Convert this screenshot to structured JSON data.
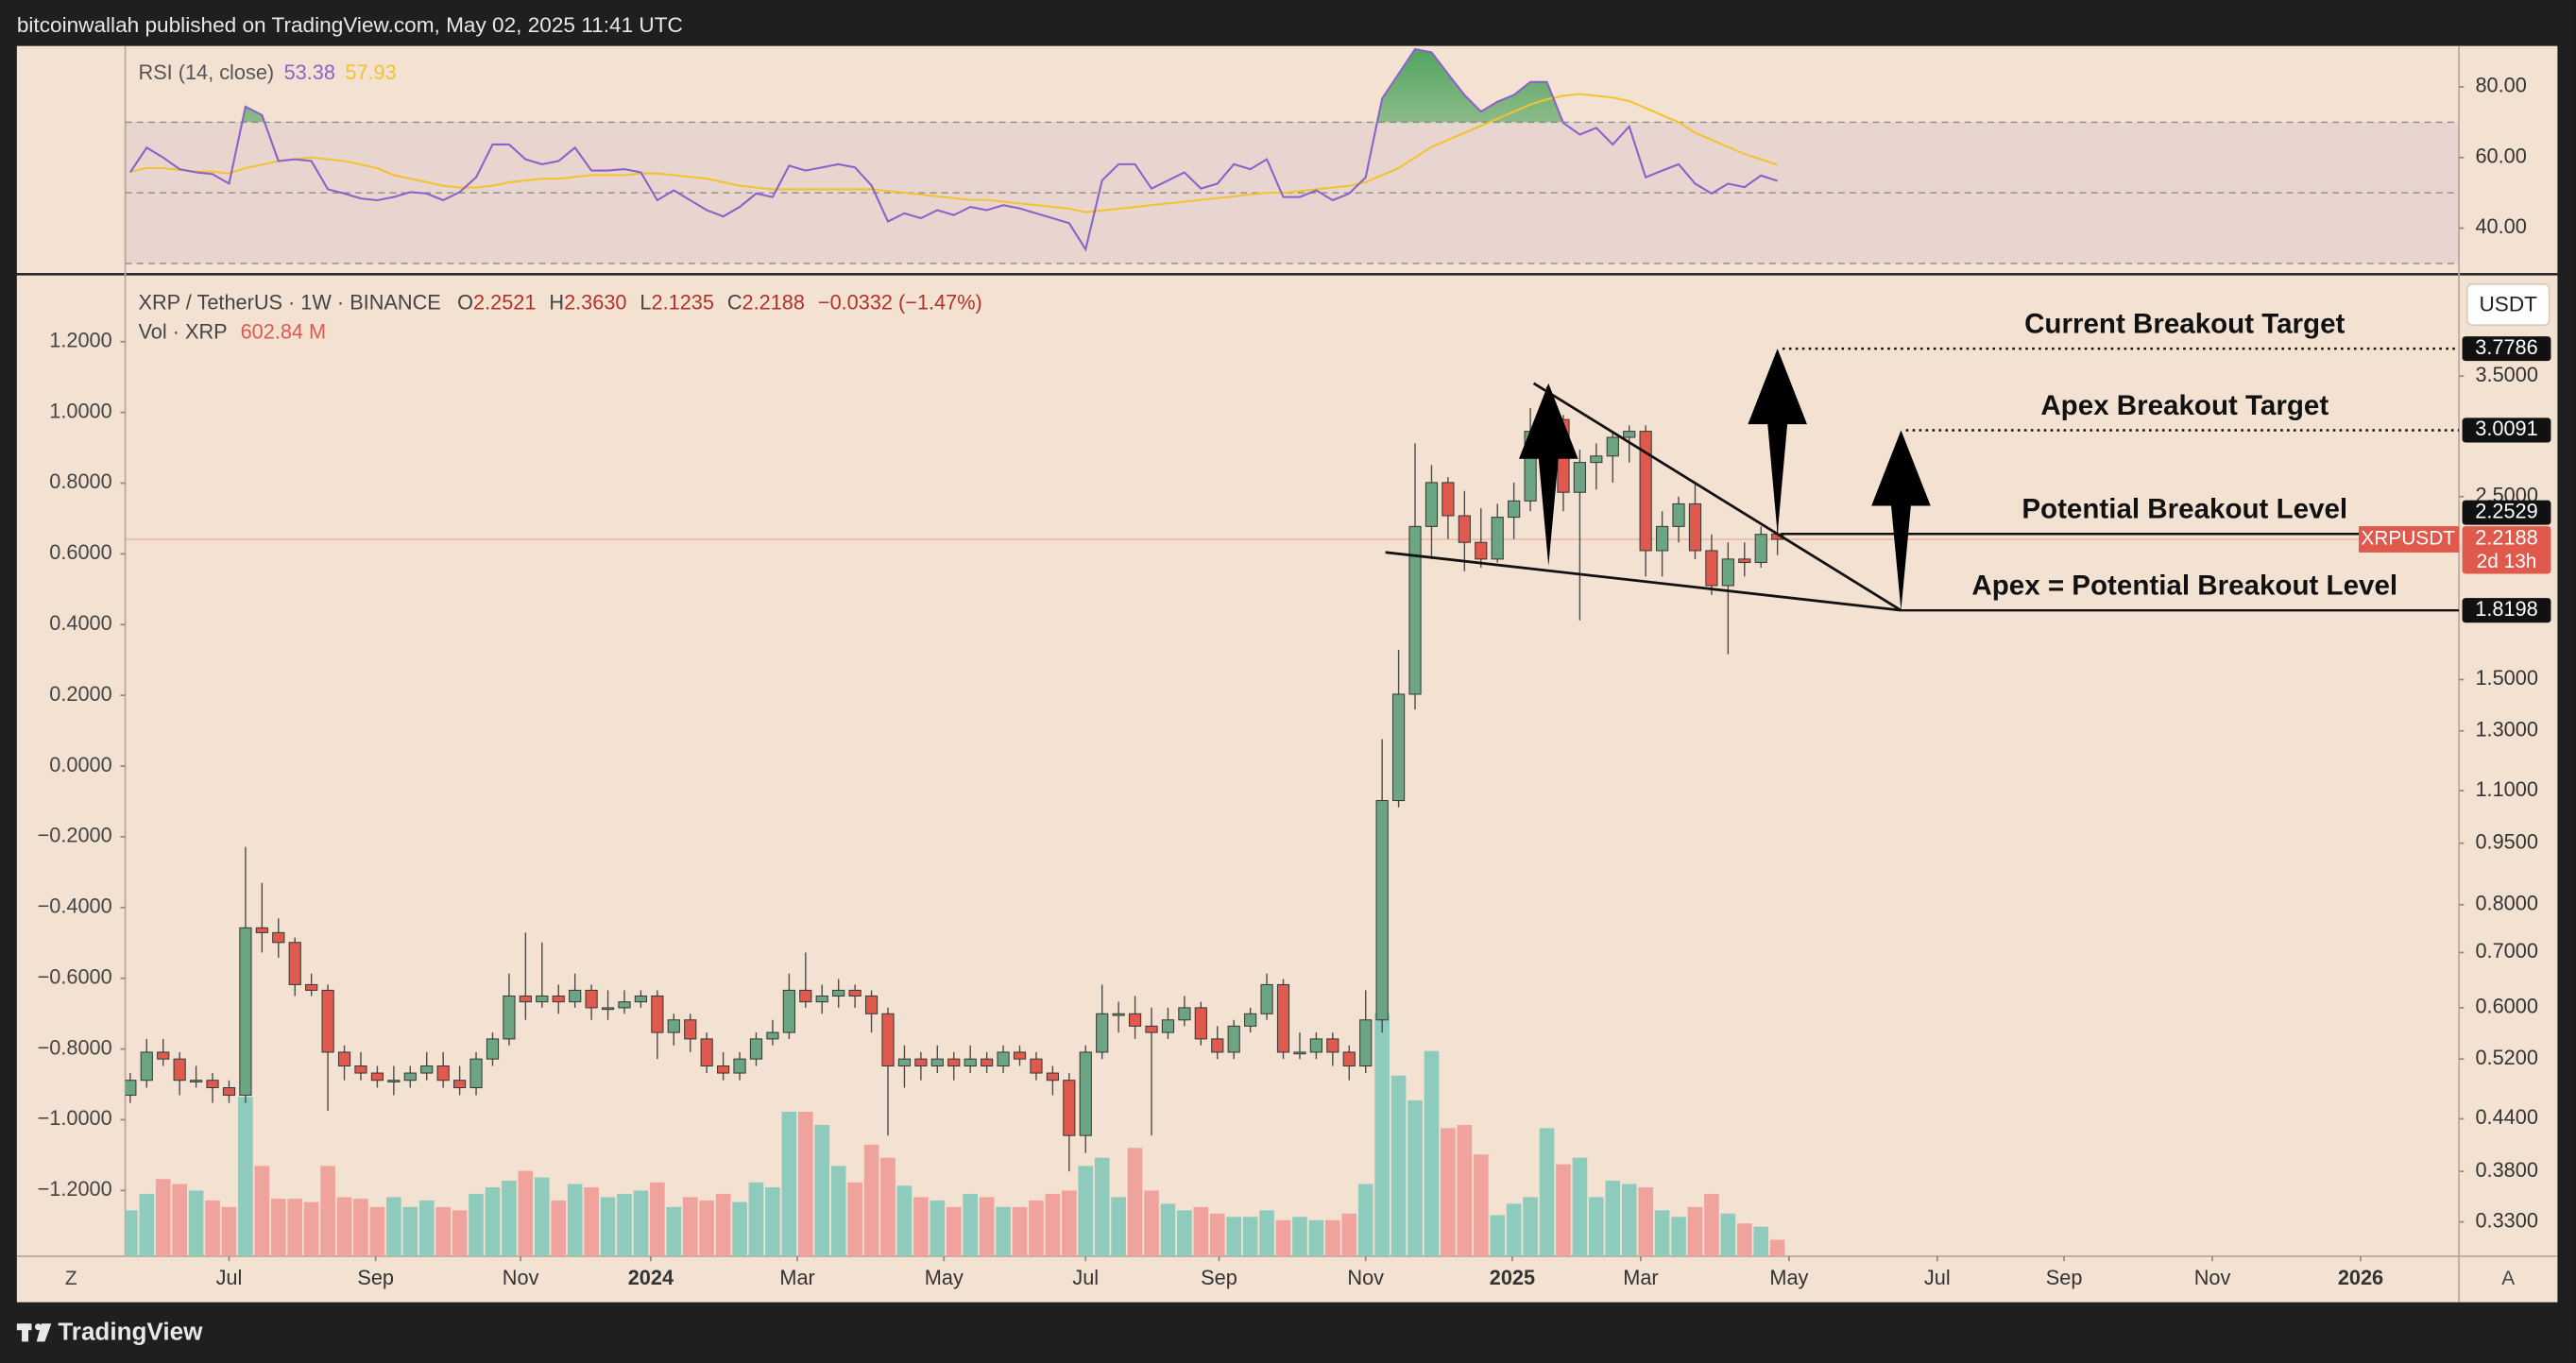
{
  "header": {
    "text": "bitcoinwallah published on TradingView.com, May 02, 2025 11:41 UTC"
  },
  "footer": {
    "brand": "TradingView",
    "left_button": "Z",
    "right_button": "A"
  },
  "chart_data": {
    "type": "candlestick",
    "symbol": "XRP / TetherUS · 1W · BINANCE",
    "ohlc_legend": [
      {
        "key": "O",
        "value": "2.2521"
      },
      {
        "key": "H",
        "value": "2.3630"
      },
      {
        "key": "L",
        "value": "2.1235"
      },
      {
        "key": "C",
        "value": "2.2188"
      }
    ],
    "change_label": "−0.0332 (−1.47%)",
    "volume_legend": {
      "name": "Vol · XRP",
      "value": "602.84 M"
    },
    "currency": "USDT",
    "colors": {
      "up": "#6ba583",
      "down": "#e0594d",
      "volume_up": "#8fcbbd",
      "volume_down": "#f0a29d",
      "level": "#111111"
    },
    "candles": [
      [
        0.47,
        0.5,
        0.46,
        0.49
      ],
      [
        0.49,
        0.55,
        0.48,
        0.53
      ],
      [
        0.53,
        0.55,
        0.51,
        0.52
      ],
      [
        0.52,
        0.53,
        0.47,
        0.49
      ],
      [
        0.49,
        0.51,
        0.48,
        0.49
      ],
      [
        0.49,
        0.5,
        0.46,
        0.48
      ],
      [
        0.48,
        0.49,
        0.46,
        0.47
      ],
      [
        0.47,
        0.94,
        0.46,
        0.75
      ],
      [
        0.75,
        0.85,
        0.7,
        0.74
      ],
      [
        0.74,
        0.77,
        0.69,
        0.72
      ],
      [
        0.72,
        0.73,
        0.62,
        0.64
      ],
      [
        0.64,
        0.66,
        0.62,
        0.63
      ],
      [
        0.63,
        0.64,
        0.45,
        0.53
      ],
      [
        0.53,
        0.54,
        0.49,
        0.51
      ],
      [
        0.51,
        0.53,
        0.49,
        0.5
      ],
      [
        0.5,
        0.51,
        0.48,
        0.49
      ],
      [
        0.49,
        0.51,
        0.47,
        0.49
      ],
      [
        0.49,
        0.51,
        0.48,
        0.5
      ],
      [
        0.5,
        0.53,
        0.49,
        0.51
      ],
      [
        0.51,
        0.53,
        0.48,
        0.49
      ],
      [
        0.49,
        0.51,
        0.47,
        0.48
      ],
      [
        0.48,
        0.53,
        0.47,
        0.52
      ],
      [
        0.52,
        0.56,
        0.51,
        0.55
      ],
      [
        0.55,
        0.66,
        0.54,
        0.62
      ],
      [
        0.62,
        0.74,
        0.58,
        0.61
      ],
      [
        0.61,
        0.72,
        0.6,
        0.62
      ],
      [
        0.62,
        0.64,
        0.59,
        0.61
      ],
      [
        0.61,
        0.66,
        0.6,
        0.63
      ],
      [
        0.63,
        0.64,
        0.58,
        0.6
      ],
      [
        0.6,
        0.63,
        0.58,
        0.6
      ],
      [
        0.6,
        0.63,
        0.59,
        0.61
      ],
      [
        0.61,
        0.63,
        0.6,
        0.62
      ],
      [
        0.62,
        0.63,
        0.52,
        0.56
      ],
      [
        0.56,
        0.59,
        0.54,
        0.58
      ],
      [
        0.58,
        0.59,
        0.53,
        0.55
      ],
      [
        0.55,
        0.56,
        0.5,
        0.51
      ],
      [
        0.51,
        0.53,
        0.49,
        0.5
      ],
      [
        0.5,
        0.53,
        0.49,
        0.52
      ],
      [
        0.52,
        0.56,
        0.51,
        0.55
      ],
      [
        0.55,
        0.58,
        0.54,
        0.56
      ],
      [
        0.56,
        0.66,
        0.55,
        0.63
      ],
      [
        0.63,
        0.7,
        0.6,
        0.61
      ],
      [
        0.61,
        0.64,
        0.59,
        0.62
      ],
      [
        0.62,
        0.65,
        0.6,
        0.63
      ],
      [
        0.63,
        0.64,
        0.6,
        0.62
      ],
      [
        0.62,
        0.63,
        0.56,
        0.59
      ],
      [
        0.59,
        0.6,
        0.42,
        0.51
      ],
      [
        0.51,
        0.54,
        0.48,
        0.52
      ],
      [
        0.52,
        0.53,
        0.49,
        0.51
      ],
      [
        0.51,
        0.54,
        0.5,
        0.52
      ],
      [
        0.52,
        0.53,
        0.49,
        0.51
      ],
      [
        0.51,
        0.54,
        0.5,
        0.52
      ],
      [
        0.52,
        0.53,
        0.5,
        0.51
      ],
      [
        0.51,
        0.54,
        0.5,
        0.53
      ],
      [
        0.53,
        0.54,
        0.51,
        0.52
      ],
      [
        0.52,
        0.53,
        0.49,
        0.5
      ],
      [
        0.5,
        0.51,
        0.47,
        0.49
      ],
      [
        0.49,
        0.5,
        0.38,
        0.42
      ],
      [
        0.42,
        0.54,
        0.4,
        0.53
      ],
      [
        0.53,
        0.64,
        0.52,
        0.59
      ],
      [
        0.59,
        0.61,
        0.56,
        0.59
      ],
      [
        0.59,
        0.62,
        0.55,
        0.57
      ],
      [
        0.57,
        0.6,
        0.42,
        0.56
      ],
      [
        0.56,
        0.6,
        0.55,
        0.58
      ],
      [
        0.58,
        0.62,
        0.57,
        0.6
      ],
      [
        0.6,
        0.61,
        0.54,
        0.55
      ],
      [
        0.55,
        0.57,
        0.52,
        0.53
      ],
      [
        0.53,
        0.58,
        0.52,
        0.57
      ],
      [
        0.57,
        0.6,
        0.56,
        0.59
      ],
      [
        0.59,
        0.66,
        0.58,
        0.64
      ],
      [
        0.64,
        0.65,
        0.52,
        0.53
      ],
      [
        0.53,
        0.56,
        0.52,
        0.53
      ],
      [
        0.53,
        0.56,
        0.52,
        0.55
      ],
      [
        0.55,
        0.56,
        0.51,
        0.53
      ],
      [
        0.53,
        0.54,
        0.49,
        0.51
      ],
      [
        0.51,
        0.63,
        0.5,
        0.58
      ],
      [
        0.58,
        1.27,
        0.56,
        1.07
      ],
      [
        1.07,
        1.63,
        1.05,
        1.44
      ],
      [
        1.44,
        2.9,
        1.38,
        2.3
      ],
      [
        2.3,
        2.73,
        2.1,
        2.6
      ],
      [
        2.6,
        2.64,
        2.22,
        2.37
      ],
      [
        2.37,
        2.54,
        2.03,
        2.2
      ],
      [
        2.2,
        2.42,
        2.05,
        2.1
      ],
      [
        2.1,
        2.45,
        2.08,
        2.36
      ],
      [
        2.36,
        2.6,
        2.22,
        2.47
      ],
      [
        2.47,
        3.2,
        2.4,
        3
      ],
      [
        3,
        3.4,
        2.8,
        3.1
      ],
      [
        3.1,
        3.14,
        2.4,
        2.53
      ],
      [
        2.53,
        2.85,
        1.77,
        2.75
      ],
      [
        2.75,
        2.9,
        2.55,
        2.8
      ],
      [
        2.8,
        3,
        2.6,
        2.95
      ],
      [
        2.95,
        3.05,
        2.75,
        3
      ],
      [
        3,
        3.05,
        2,
        2.15
      ],
      [
        2.15,
        2.4,
        2,
        2.3
      ],
      [
        2.3,
        2.5,
        2.2,
        2.45
      ],
      [
        2.45,
        2.6,
        2.1,
        2.15
      ],
      [
        2.15,
        2.25,
        1.9,
        1.95
      ],
      [
        1.95,
        2.2,
        1.61,
        2.1
      ],
      [
        2.1,
        2.2,
        2,
        2.08
      ],
      [
        2.08,
        2.3,
        2.05,
        2.25
      ],
      [
        2.2521,
        2.363,
        2.1235,
        2.2188
      ]
    ],
    "volumes": [
      1680,
      2280,
      2820,
      2640,
      2400,
      2040,
      1800,
      5820,
      3300,
      2100,
      2100,
      1980,
      3300,
      2160,
      2100,
      1800,
      2160,
      1800,
      2040,
      1800,
      1680,
      2280,
      2520,
      2760,
      3120,
      2880,
      2040,
      2640,
      2520,
      2160,
      2280,
      2400,
      2700,
      1800,
      2160,
      2040,
      2280,
      1980,
      2700,
      2520,
      5280,
      5280,
      4800,
      3300,
      2700,
      4080,
      3600,
      2580,
      2160,
      2040,
      1800,
      2280,
      2160,
      1800,
      1800,
      2040,
      2280,
      2400,
      3300,
      3600,
      2160,
      3960,
      2400,
      1920,
      1680,
      1800,
      1560,
      1440,
      1440,
      1680,
      1320,
      1440,
      1320,
      1320,
      1560,
      2640,
      8880,
      6600,
      5700,
      7500,
      4680,
      4800,
      3720,
      1500,
      1920,
      2160,
      4680,
      3360,
      3600,
      2160,
      2760,
      2640,
      2520,
      1680,
      1440,
      1800,
      2280,
      1560,
      1200,
      1080,
      602.84
    ],
    "xlim": [
      -0.3,
      141.37
    ],
    "xticks": [
      {
        "value": 6,
        "label": "Jul"
      },
      {
        "value": 14.9,
        "label": "Sep"
      },
      {
        "value": 23.7,
        "label": "Nov"
      },
      {
        "value": 31.6,
        "label": "2024"
      },
      {
        "value": 40.5,
        "label": "Mar"
      },
      {
        "value": 49.4,
        "label": "May"
      },
      {
        "value": 58,
        "label": "Jul"
      },
      {
        "value": 66.1,
        "label": "Sep"
      },
      {
        "value": 75,
        "label": "Nov"
      },
      {
        "value": 83.9,
        "label": "2025"
      },
      {
        "value": 91.7,
        "label": "Mar"
      },
      {
        "value": 100.7,
        "label": "May"
      },
      {
        "value": 109.7,
        "label": "Jul"
      },
      {
        "value": 117.4,
        "label": "Sep"
      },
      {
        "value": 126.4,
        "label": "Nov"
      },
      {
        "value": 135.4,
        "label": "2026"
      }
    ],
    "ylim": [
      0.2998,
      4.63
    ],
    "log_scale": true,
    "yticks": [
      {
        "value": 3.5,
        "label": "3.5000"
      },
      {
        "value": 2.5,
        "label": "2.5000"
      },
      {
        "value": 1.5,
        "label": "1.5000"
      },
      {
        "value": 1.3,
        "label": "1.3000"
      },
      {
        "value": 1.1,
        "label": "1.1000"
      },
      {
        "value": 0.95,
        "label": "0.9500"
      },
      {
        "value": 0.8,
        "label": "0.8000"
      },
      {
        "value": 0.7,
        "label": "0.7000"
      },
      {
        "value": 0.6,
        "label": "0.6000"
      },
      {
        "value": 0.52,
        "label": "0.5200"
      },
      {
        "value": 0.44,
        "label": "0.4400"
      },
      {
        "value": 0.38,
        "label": "0.3800"
      },
      {
        "value": 0.33,
        "label": "0.3300"
      }
    ],
    "left_ylim": [
      -1.386,
      1.386
    ],
    "left_yticks": [
      {
        "value": 1.2,
        "label": "1.2000"
      },
      {
        "value": 1,
        "label": "1.0000"
      },
      {
        "value": 0.8,
        "label": "0.8000"
      },
      {
        "value": 0.6,
        "label": "0.6000"
      },
      {
        "value": 0.4,
        "label": "0.4000"
      },
      {
        "value": 0.2,
        "label": "0.2000"
      },
      {
        "value": 0,
        "label": "0.0000"
      },
      {
        "value": -0.2,
        "label": "−0.2000"
      },
      {
        "value": -0.4,
        "label": "−0.4000"
      },
      {
        "value": -0.6,
        "label": "−0.6000"
      },
      {
        "value": -0.8,
        "label": "−0.8000"
      },
      {
        "value": -1,
        "label": "−1.0000"
      },
      {
        "value": -1.2,
        "label": "−1.2000"
      }
    ],
    "last_price": {
      "symbol": "XRPUSDT",
      "value": 2.2188,
      "label": "2.2188",
      "countdown": "2d 13h",
      "color": "#e0594d"
    },
    "levels": [
      {
        "name": "Current Breakout Target",
        "value": 3.7786,
        "label": "3.7786",
        "from": 100.3,
        "style": "dotted"
      },
      {
        "name": "Apex Breakout Target",
        "value": 3.0091,
        "label": "3.0091",
        "from": 107.8,
        "style": "dotted"
      },
      {
        "name": "Potential Breakout Level",
        "value": 2.2529,
        "label": "2.2529",
        "from": 100.2,
        "style": "solid"
      },
      {
        "name": "Apex = Potential Breakout Level",
        "value": 1.8198,
        "label": "1.8198",
        "from": 107.5,
        "style": "solid"
      }
    ],
    "trendlines": [
      {
        "from": [
          85.2,
          3.43
        ],
        "to": [
          107.5,
          1.8198
        ]
      },
      {
        "from": [
          76.2,
          2.14
        ],
        "to": [
          107.5,
          1.8198
        ]
      }
    ],
    "arrows": [
      {
        "x": 86.1,
        "from": 2.06,
        "to": 3.43
      },
      {
        "x": 100,
        "from": 2.2529,
        "to": 3.7786
      },
      {
        "x": 107.5,
        "from": 1.8198,
        "to": 3.0091
      }
    ],
    "rsi": {
      "name": "RSI (14, close)",
      "value_label": "53.38",
      "ma_label": "57.93",
      "color": "#8a63c9",
      "ma_color": "#f2c230",
      "values": [
        55.8,
        62.8,
        60,
        56.7,
        55.8,
        55.3,
        52.6,
        74.4,
        72,
        59,
        59.5,
        59,
        51,
        49.8,
        48.4,
        47.9,
        48.8,
        50.2,
        49.8,
        47.9,
        50.2,
        54.4,
        63.7,
        63.7,
        59.5,
        58.1,
        59,
        62.8,
        56.3,
        56.3,
        56.7,
        55.8,
        47.9,
        50.7,
        47.9,
        45.1,
        43.3,
        46,
        49.8,
        48.8,
        57.7,
        56.3,
        57.2,
        58.1,
        57.2,
        52.1,
        41.9,
        44.2,
        42.8,
        45.1,
        43.7,
        46,
        45.1,
        46.5,
        45.6,
        44.2,
        42.8,
        41.4,
        34,
        53.5,
        58.1,
        58.1,
        51.2,
        53.5,
        55.8,
        51.2,
        52.6,
        58.1,
        56.7,
        59.5,
        48.8,
        48.8,
        50.7,
        47.9,
        49.8,
        54.4,
        76.7,
        83.7,
        90.7,
        89.8,
        83.7,
        77.7,
        73,
        75.8,
        77.7,
        81.4,
        81.4,
        69.8,
        66.5,
        68.4,
        63.7,
        68.8,
        54.4,
        56.3,
        58.1,
        52.6,
        49.8,
        52.6,
        51.6,
        54.9,
        53.38
      ],
      "ma": [
        56,
        57,
        57,
        56.5,
        56,
        56,
        55.5,
        57,
        58,
        59,
        59.5,
        60,
        59.5,
        59,
        58,
        57,
        55,
        54,
        53,
        52,
        51.5,
        51.5,
        52,
        53,
        53.5,
        54,
        54,
        54.5,
        55,
        55,
        55,
        55.5,
        55.5,
        55,
        54.5,
        54,
        53,
        52,
        51.5,
        51,
        51,
        51,
        51,
        51,
        51,
        51,
        50.5,
        50,
        49.5,
        49,
        48.5,
        48,
        48,
        47.5,
        47,
        46.5,
        46,
        45.5,
        44.5,
        45,
        45.5,
        46,
        46.5,
        47,
        47.5,
        48,
        48.5,
        49,
        49.5,
        50,
        50,
        50.5,
        51,
        51.5,
        52,
        53,
        55,
        57,
        60,
        63,
        65,
        67,
        69,
        71,
        73,
        75,
        76.5,
        77.5,
        78,
        77.5,
        77,
        76,
        74,
        72,
        70,
        67,
        65,
        63,
        61,
        59.5,
        57.93
      ],
      "ylim": [
        27.4,
        91.6
      ],
      "yticks": [
        {
          "value": 80,
          "label": "80.00"
        },
        {
          "value": 60,
          "label": "60.00"
        },
        {
          "value": 40,
          "label": "40.00"
        }
      ],
      "band": [
        30,
        70
      ],
      "levels": [
        70,
        50,
        30
      ]
    }
  }
}
